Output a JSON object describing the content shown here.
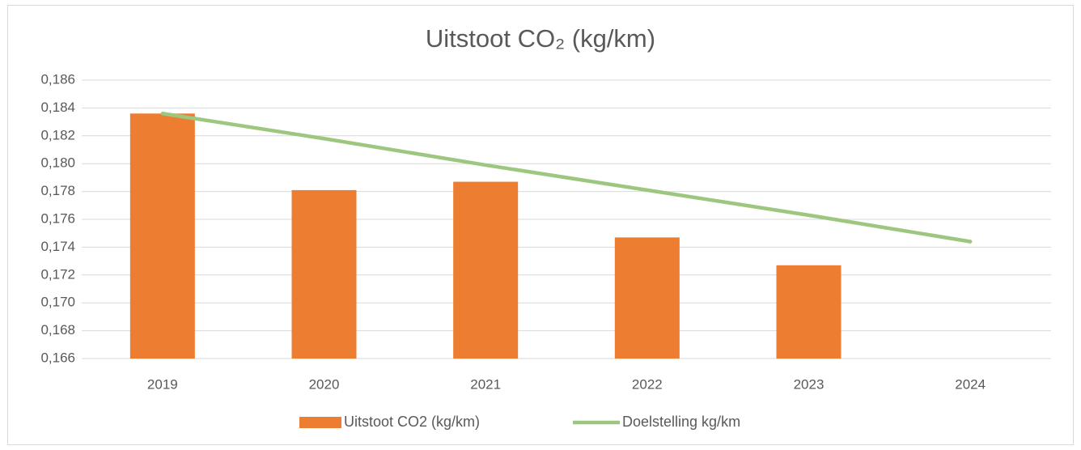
{
  "chart_data": {
    "type": "bar_line",
    "title": "Uitstoot CO₂ (kg/km)",
    "categories": [
      "2019",
      "2020",
      "2021",
      "2022",
      "2023",
      "2024"
    ],
    "series": [
      {
        "name": "Uitstoot CO2 (kg/km)",
        "type": "bar",
        "color": "#ed7d31",
        "values": [
          0.1836,
          0.1781,
          0.1787,
          0.1747,
          0.1727,
          null
        ]
      },
      {
        "name": "Doelstelling kg/km",
        "type": "line",
        "color": "#9dc67f",
        "values": [
          0.1836,
          0.1818,
          0.1799,
          0.1781,
          0.1763,
          0.1744
        ]
      }
    ],
    "ylim": [
      0.166,
      0.186
    ],
    "yticks": [
      {
        "value": 0.166,
        "label": "0,166"
      },
      {
        "value": 0.168,
        "label": "0,168"
      },
      {
        "value": 0.17,
        "label": "0,170"
      },
      {
        "value": 0.172,
        "label": "0,172"
      },
      {
        "value": 0.174,
        "label": "0,174"
      },
      {
        "value": 0.176,
        "label": "0,176"
      },
      {
        "value": 0.178,
        "label": "0,178"
      },
      {
        "value": 0.18,
        "label": "0,180"
      },
      {
        "value": 0.182,
        "label": "0,182"
      },
      {
        "value": 0.184,
        "label": "0,184"
      },
      {
        "value": 0.186,
        "label": "0,186"
      }
    ],
    "grid": true,
    "legend": "bottom"
  }
}
